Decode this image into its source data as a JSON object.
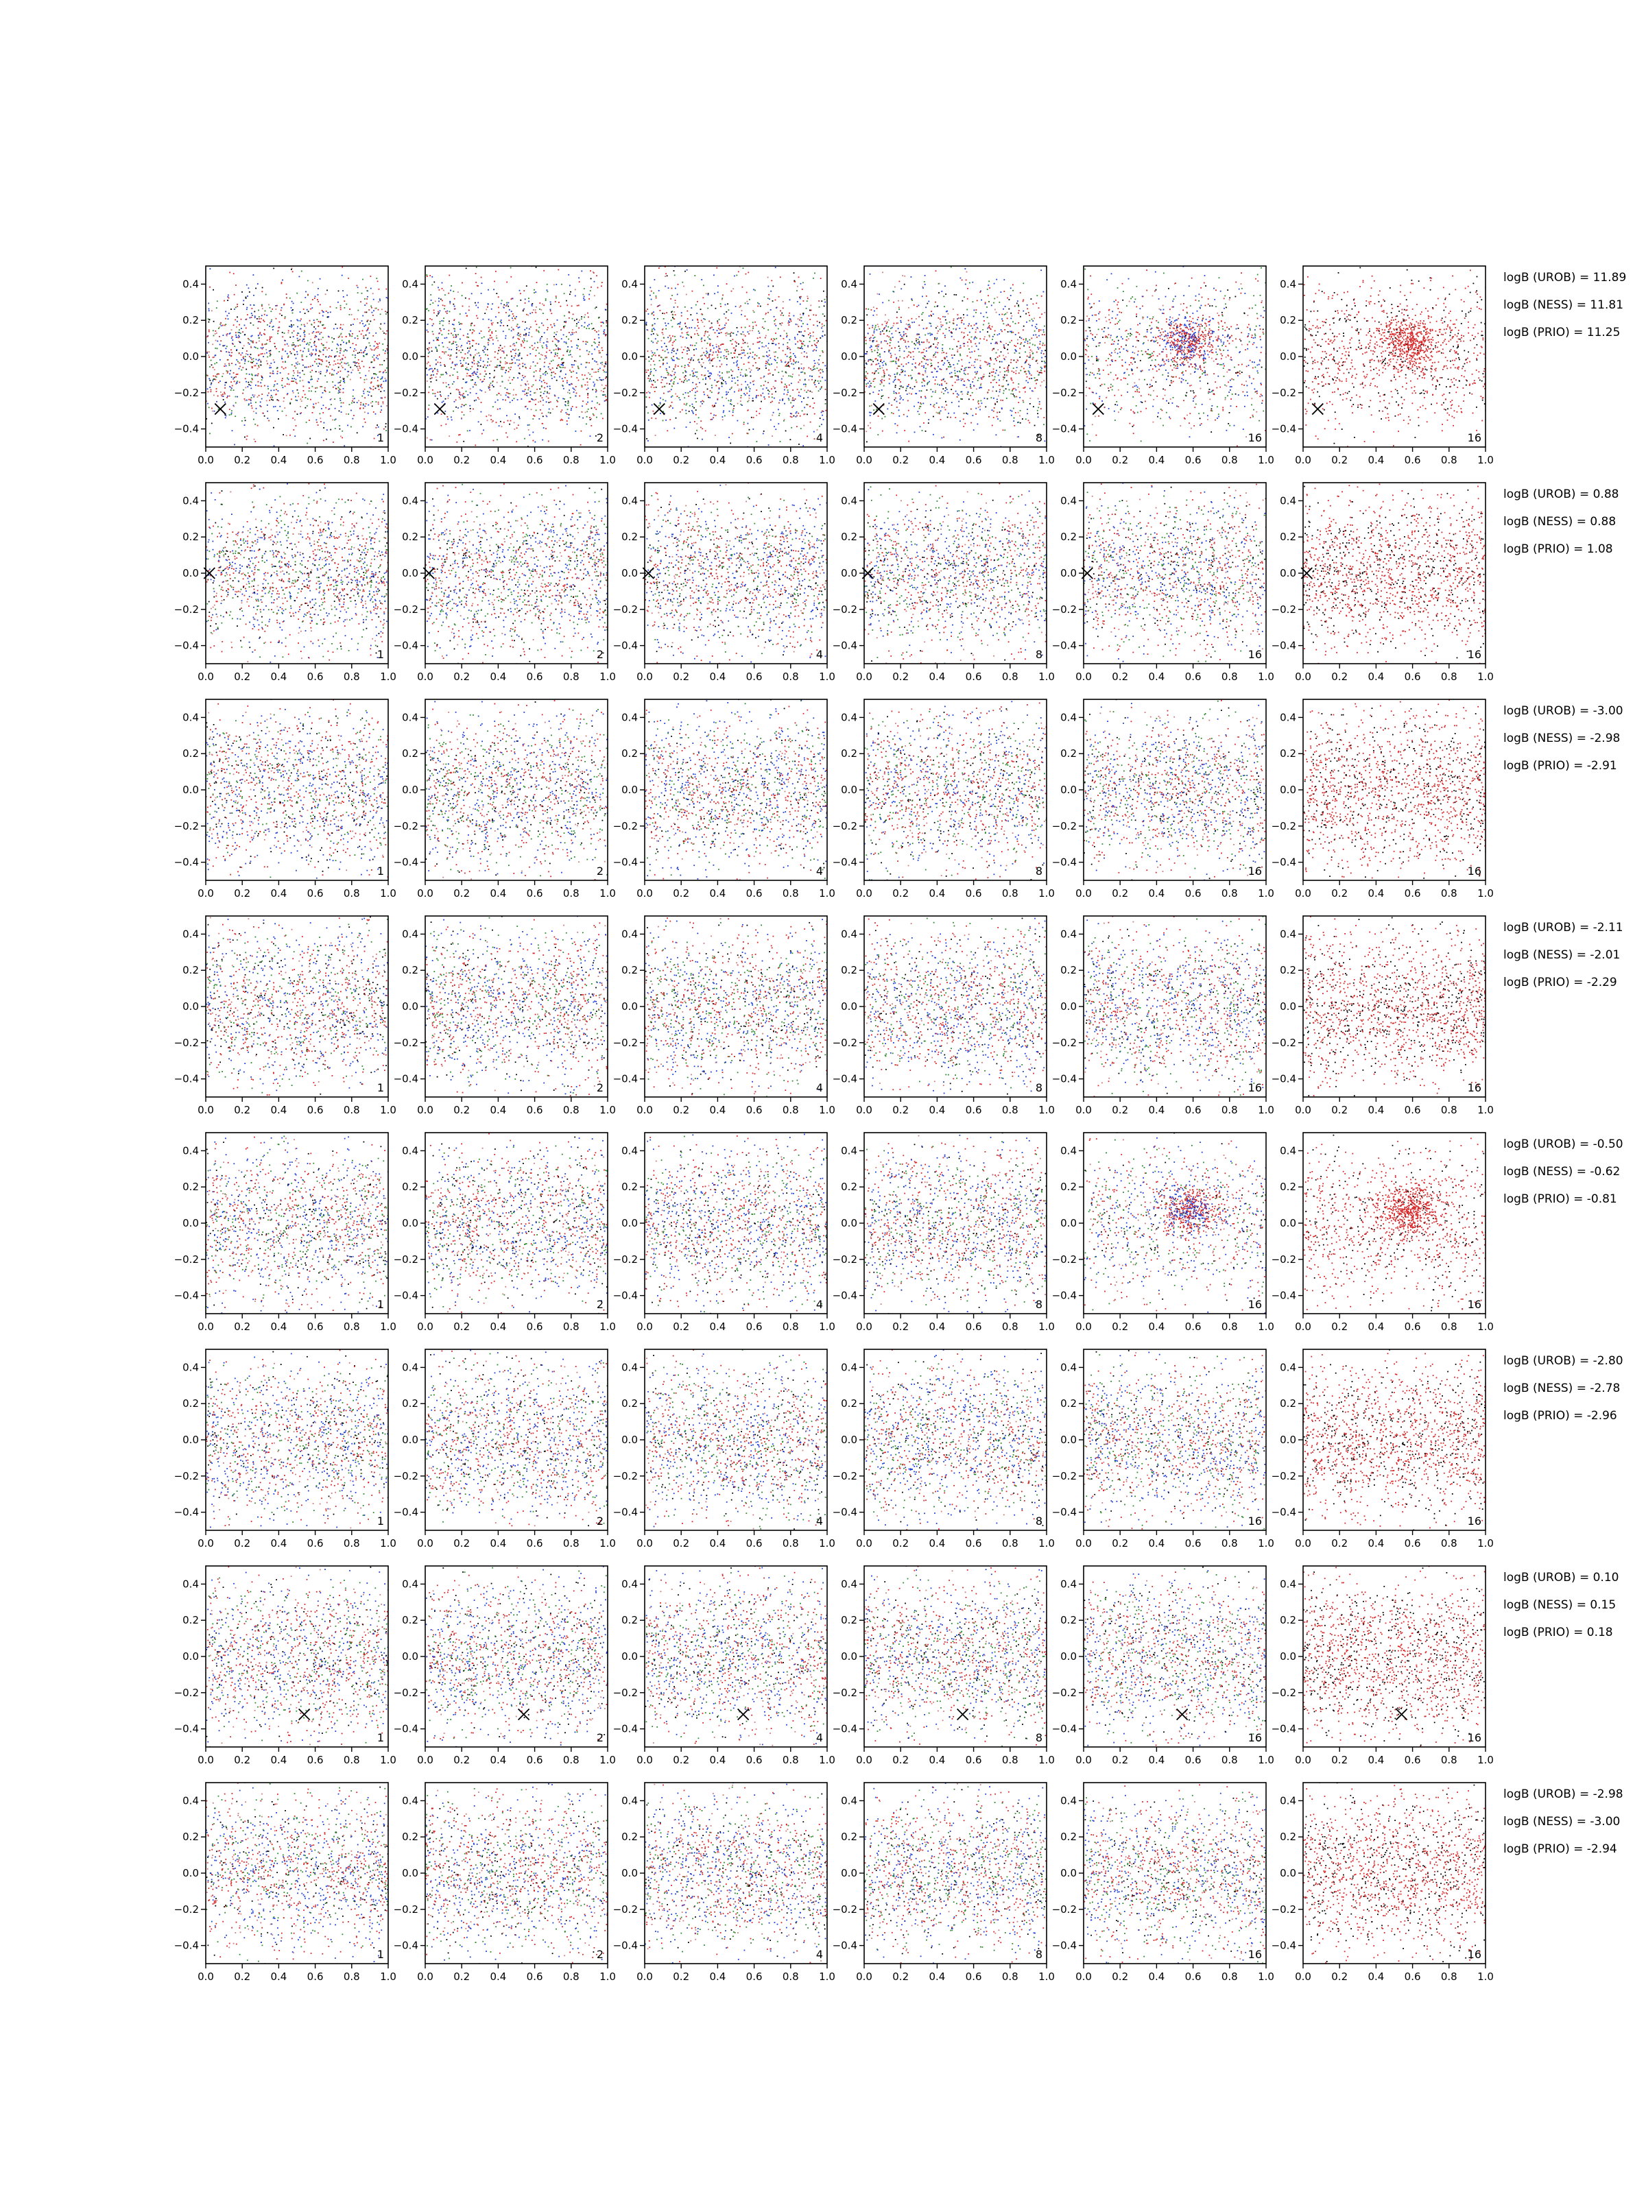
{
  "chart_data": {
    "type": "scatter",
    "layout": "grid",
    "xlim": [
      0.0,
      1.0
    ],
    "ylim": [
      -0.5,
      0.5
    ],
    "x_ticks": [
      "0.0",
      "0.2",
      "0.4",
      "0.6",
      "0.8",
      "1.0"
    ],
    "x_tick_values": [
      0.0,
      0.2,
      0.4,
      0.6,
      0.8,
      1.0
    ],
    "y_ticks": [
      "0.4",
      "0.2",
      "0.0",
      "−0.2",
      "−0.4"
    ],
    "y_tick_values": [
      0.4,
      0.2,
      0.0,
      -0.2,
      -0.4
    ],
    "column_labels": [
      "1",
      "2",
      "4",
      "8",
      "16",
      "16"
    ],
    "series_colors": [
      "#d62728",
      "#1f3fd6",
      "#2a8a2a",
      "#d07a7a",
      "#000000"
    ],
    "rows": [
      {
        "marker": [
          0.08,
          -0.29
        ],
        "bayes_factors": [
          "logB (UROB) = 11.89",
          "logB (NESS) = 11.81",
          "logB (PRIO) = 11.25"
        ],
        "structure": "strong"
      },
      {
        "marker": [
          0.02,
          0.0
        ],
        "bayes_factors": [
          "logB (UROB) = 0.88",
          "logB (NESS) = 0.88",
          "logB (PRIO) = 1.08"
        ],
        "structure": "none"
      },
      {
        "marker": null,
        "bayes_factors": [
          "logB (UROB) = -3.00",
          "logB (NESS) = -2.98",
          "logB (PRIO) = -2.91"
        ],
        "structure": "weak"
      },
      {
        "marker": null,
        "bayes_factors": [
          "logB (UROB) = -2.11",
          "logB (NESS) = -2.01",
          "logB (PRIO) = -2.29"
        ],
        "structure": "none"
      },
      {
        "marker": null,
        "bayes_factors": [
          "logB (UROB) = -0.50",
          "logB (NESS) = -0.62",
          "logB (PRIO) = -0.81"
        ],
        "structure": "strong"
      },
      {
        "marker": null,
        "bayes_factors": [
          "logB (UROB) = -2.80",
          "logB (NESS) = -2.78",
          "logB (PRIO) = -2.96"
        ],
        "structure": "none"
      },
      {
        "marker": [
          0.54,
          -0.32
        ],
        "bayes_factors": [
          "logB (UROB) = 0.10",
          "logB (NESS) = 0.15",
          "logB (PRIO) = 0.18"
        ],
        "structure": "none"
      },
      {
        "marker": null,
        "bayes_factors": [
          "logB (UROB) = -2.98",
          "logB (NESS) = -3.00",
          "logB (PRIO) = -2.94"
        ],
        "structure": "none"
      }
    ]
  }
}
